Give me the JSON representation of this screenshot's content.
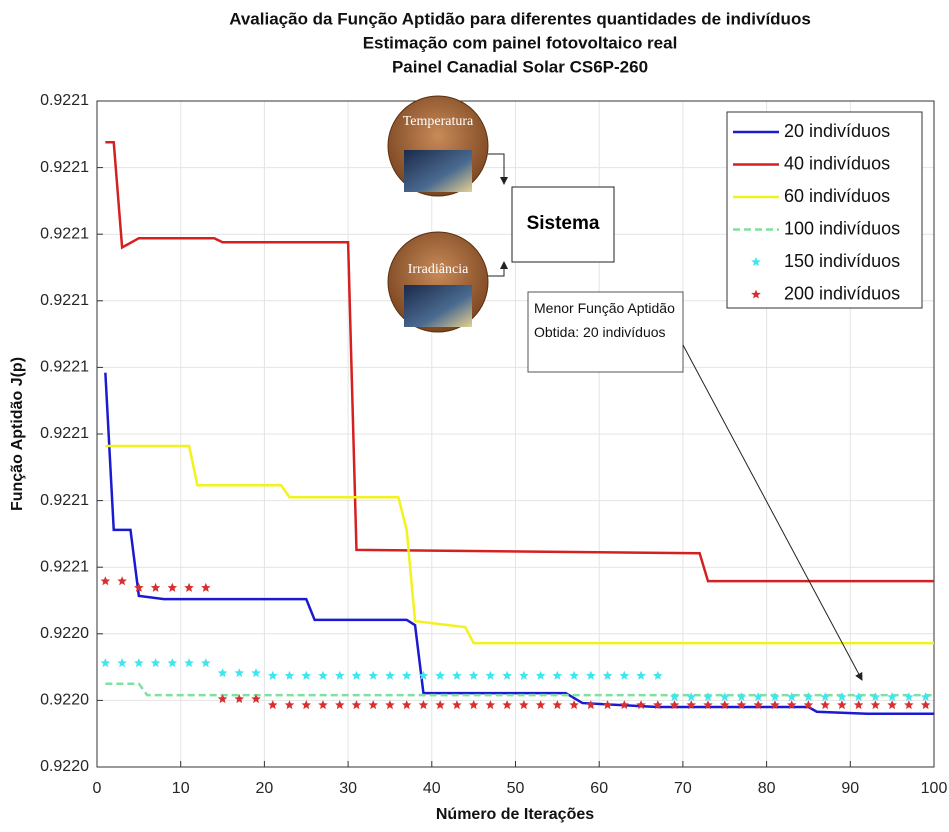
{
  "chart_data": {
    "type": "line",
    "title": [
      "Avaliação da Função Aptidão para diferentes quantidades de indivíduos",
      "Estimação com painel fotovoltaico real",
      "Painel Canadial Solar CS6P-260"
    ],
    "xlabel": "Número de Iterações",
    "ylabel": "Função Aptidão J(p)",
    "xlim": [
      0,
      100
    ],
    "xticks": [
      0,
      10,
      20,
      30,
      40,
      50,
      60,
      70,
      80,
      90,
      100
    ],
    "ylim": [
      0.922022,
      0.922122
    ],
    "yticks": [
      {
        "value": 0.922022,
        "label": "0.9220"
      },
      {
        "value": 0.922032,
        "label": "0.9220"
      },
      {
        "value": 0.922042,
        "label": "0.9220"
      },
      {
        "value": 0.922052,
        "label": "0.9221"
      },
      {
        "value": 0.922062,
        "label": "0.9221"
      },
      {
        "value": 0.922072,
        "label": "0.9221"
      },
      {
        "value": 0.922082,
        "label": "0.9221"
      },
      {
        "value": 0.922092,
        "label": "0.9221"
      },
      {
        "value": 0.922102,
        "label": "0.9221"
      },
      {
        "value": 0.922112,
        "label": "0.9221"
      },
      {
        "value": 0.922122,
        "label": "0.9221"
      }
    ],
    "grid": true,
    "legend": "upper right",
    "series": [
      {
        "name": "20 indivíduos",
        "color": "#1a1ad0",
        "linestyle": "solid",
        "marker": "none",
        "x": [
          1,
          2,
          4,
          5,
          8,
          25,
          26,
          37,
          38,
          39,
          56,
          58,
          67,
          85,
          86,
          92,
          100
        ],
        "values": [
          0.9220812,
          0.9220576,
          0.9220576,
          0.9220477,
          0.9220472,
          0.9220472,
          0.9220441,
          0.9220441,
          0.9220433,
          0.9220331,
          0.9220331,
          0.9220316,
          0.922031,
          0.922031,
          0.9220303,
          0.92203,
          0.92203
        ]
      },
      {
        "name": "40 indivíduos",
        "color": "#d42020",
        "linestyle": "solid",
        "marker": "none",
        "x": [
          1,
          2,
          3,
          5,
          14,
          15,
          30,
          31,
          72,
          73,
          100
        ],
        "values": [
          0.9221158,
          0.9221158,
          0.9221,
          0.9221014,
          0.9221014,
          0.9221008,
          0.9221008,
          0.9220546,
          0.9220541,
          0.9220499,
          0.9220499
        ]
      },
      {
        "name": "60 indivíduos",
        "color": "#f2f21e",
        "linestyle": "solid",
        "marker": "none",
        "x": [
          1,
          11,
          12,
          22,
          23,
          36,
          37,
          38,
          44,
          45,
          100
        ],
        "values": [
          0.9220702,
          0.9220702,
          0.9220643,
          0.9220643,
          0.9220625,
          0.9220625,
          0.9220576,
          0.9220439,
          0.922043,
          0.9220406,
          0.9220406
        ]
      },
      {
        "name": "100 indivíduos",
        "color": "#7fe0a0",
        "linestyle": "dashed",
        "marker": "none",
        "x": [
          1,
          5,
          6,
          100
        ],
        "values": [
          0.9220345,
          0.9220345,
          0.9220328,
          0.9220328
        ]
      },
      {
        "name": "150 indivíduos",
        "color": "#3ee6f0",
        "linestyle": "none",
        "marker": "star",
        "x": [
          1,
          3,
          5,
          7,
          9,
          11,
          13,
          15,
          17,
          19,
          21,
          23,
          25,
          27,
          29,
          31,
          33,
          35,
          37,
          39,
          41,
          43,
          45,
          47,
          49,
          51,
          53,
          55,
          57,
          59,
          61,
          63,
          65,
          67,
          69,
          71,
          73,
          75,
          77,
          79,
          81,
          83,
          85,
          87,
          89,
          91,
          93,
          95,
          97,
          99
        ],
        "values": [
          0.9220376,
          0.9220376,
          0.9220376,
          0.9220376,
          0.9220376,
          0.9220376,
          0.9220376,
          0.9220361,
          0.9220361,
          0.9220361,
          0.9220357,
          0.9220357,
          0.9220357,
          0.9220357,
          0.9220357,
          0.9220357,
          0.9220357,
          0.9220357,
          0.9220357,
          0.9220357,
          0.9220357,
          0.9220357,
          0.9220357,
          0.9220357,
          0.9220357,
          0.9220357,
          0.9220357,
          0.9220357,
          0.9220357,
          0.9220357,
          0.9220357,
          0.9220357,
          0.9220357,
          0.9220357,
          0.9220325,
          0.9220325,
          0.9220325,
          0.9220325,
          0.9220325,
          0.9220325,
          0.9220325,
          0.9220325,
          0.9220325,
          0.9220325,
          0.9220325,
          0.9220325,
          0.9220325,
          0.9220325,
          0.9220325,
          0.9220325
        ]
      },
      {
        "name": "200 indivíduos",
        "color": "#d83030",
        "linestyle": "none",
        "marker": "star",
        "x": [
          1,
          3,
          5,
          7,
          9,
          11,
          13,
          15,
          17,
          19,
          21,
          23,
          25,
          27,
          29,
          31,
          33,
          35,
          37,
          39,
          41,
          43,
          45,
          47,
          49,
          51,
          53,
          55,
          57,
          59,
          61,
          63,
          65,
          67,
          69,
          71,
          73,
          75,
          77,
          79,
          81,
          83,
          85,
          87,
          89,
          91,
          93,
          95,
          97,
          99
        ],
        "values": [
          0.9220499,
          0.9220499,
          0.9220489,
          0.9220489,
          0.9220489,
          0.9220489,
          0.9220489,
          0.9220322,
          0.9220322,
          0.9220322,
          0.9220313,
          0.9220313,
          0.9220313,
          0.9220313,
          0.9220313,
          0.9220313,
          0.9220313,
          0.9220313,
          0.9220313,
          0.9220313,
          0.9220313,
          0.9220313,
          0.9220313,
          0.9220313,
          0.9220313,
          0.9220313,
          0.9220313,
          0.9220313,
          0.9220313,
          0.9220313,
          0.9220313,
          0.9220313,
          0.9220313,
          0.9220313,
          0.9220313,
          0.9220313,
          0.9220313,
          0.9220313,
          0.9220313,
          0.9220313,
          0.9220313,
          0.9220313,
          0.9220313,
          0.9220313,
          0.9220313,
          0.9220313,
          0.9220313,
          0.9220313,
          0.9220313,
          0.9220313
        ]
      }
    ],
    "inset": {
      "inputs": [
        "Temperatura",
        "Irradiância"
      ],
      "system": "Sistema"
    },
    "annotation": "Menor Função Aptidão Obtida: 20 indivíduos"
  }
}
